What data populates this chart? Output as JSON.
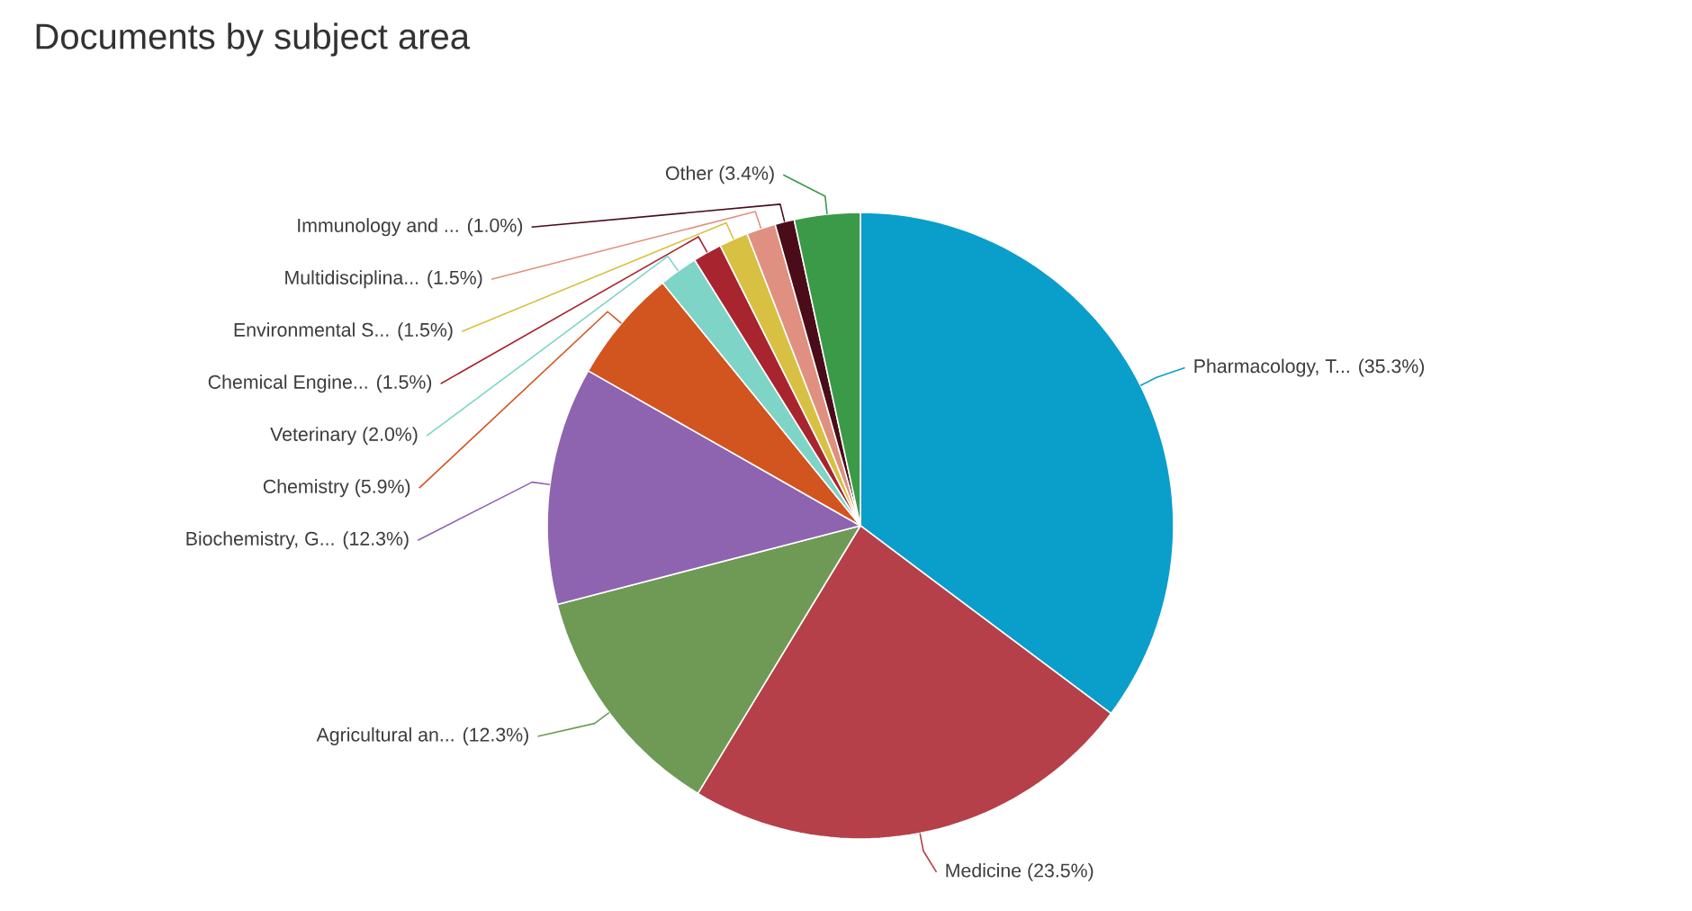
{
  "chart_data": {
    "type": "pie",
    "title": "Documents by subject area",
    "categories": [
      "Pharmacology, T...",
      "Medicine",
      "Agricultural an...",
      "Biochemistry, G...",
      "Chemistry",
      "Veterinary",
      "Chemical Engine...",
      "Environmental S...",
      "Multidisciplina...",
      "Immunology and ...",
      "Other"
    ],
    "values": [
      35.3,
      23.5,
      12.3,
      12.3,
      5.9,
      2.0,
      1.5,
      1.5,
      1.5,
      1.0,
      3.4
    ],
    "value_labels": [
      "(35.3%)",
      "(23.5%)",
      "(12.3%)",
      "(12.3%)",
      "(5.9%)",
      "(2.0%)",
      "(1.5%)",
      "(1.5%)",
      "(1.5%)",
      "(1.0%)",
      "(3.4%)"
    ],
    "colors": [
      "#0a9ecb",
      "#b5404a",
      "#6e9a55",
      "#8e64b0",
      "#d2541f",
      "#7fd4c8",
      "#a8242f",
      "#d8c043",
      "#e09080",
      "#4a0c18",
      "#3a9a48"
    ]
  }
}
